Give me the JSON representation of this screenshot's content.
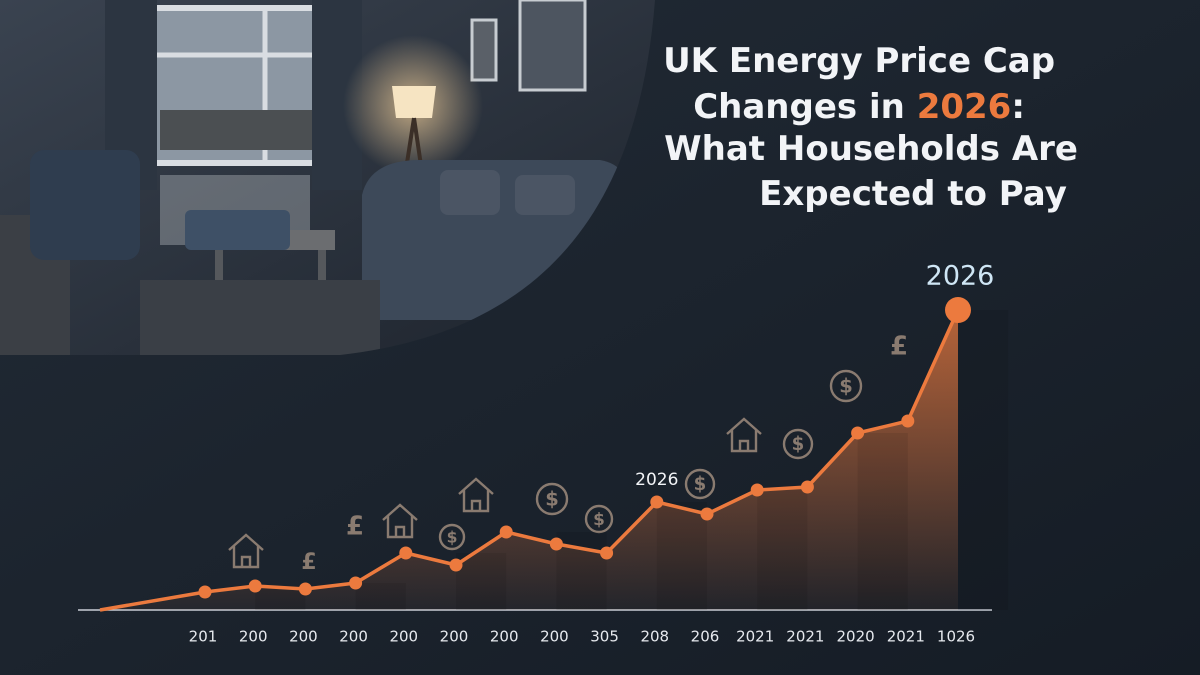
{
  "chart_data": {
    "type": "line",
    "title": [
      {
        "text": "UK Energy Price Cap",
        "color": "#f2f4f7"
      },
      {
        "text": "Changes in ",
        "color": "#f2f4f7"
      },
      {
        "text": "2026",
        "color": "#ec7a3e"
      },
      {
        "text": ":",
        "color": "#f2f4f7"
      },
      {
        "text": "What Households Are",
        "color": "#f2f4f7"
      },
      {
        "text": "Expected to Pay",
        "color": "#f2f4f7"
      }
    ],
    "categories": [
      "201",
      "200",
      "200",
      "200",
      "200",
      "200",
      "200",
      "200",
      "305",
      "208",
      "206",
      "2021",
      "2021",
      "2020",
      "2021",
      "1026"
    ],
    "values": [
      6,
      8,
      7,
      9,
      19,
      15,
      26,
      22,
      19,
      36,
      32,
      40,
      41,
      59,
      63,
      100
    ],
    "color": "#ec7a3e",
    "annotations": [
      {
        "text": "2026",
        "index": 9,
        "color": "#f2f4f7"
      },
      {
        "text": "2026",
        "index": 15,
        "color": "#cfe6f5"
      }
    ],
    "icon_symbols": {
      "pound": "£",
      "dollar": "$"
    }
  }
}
